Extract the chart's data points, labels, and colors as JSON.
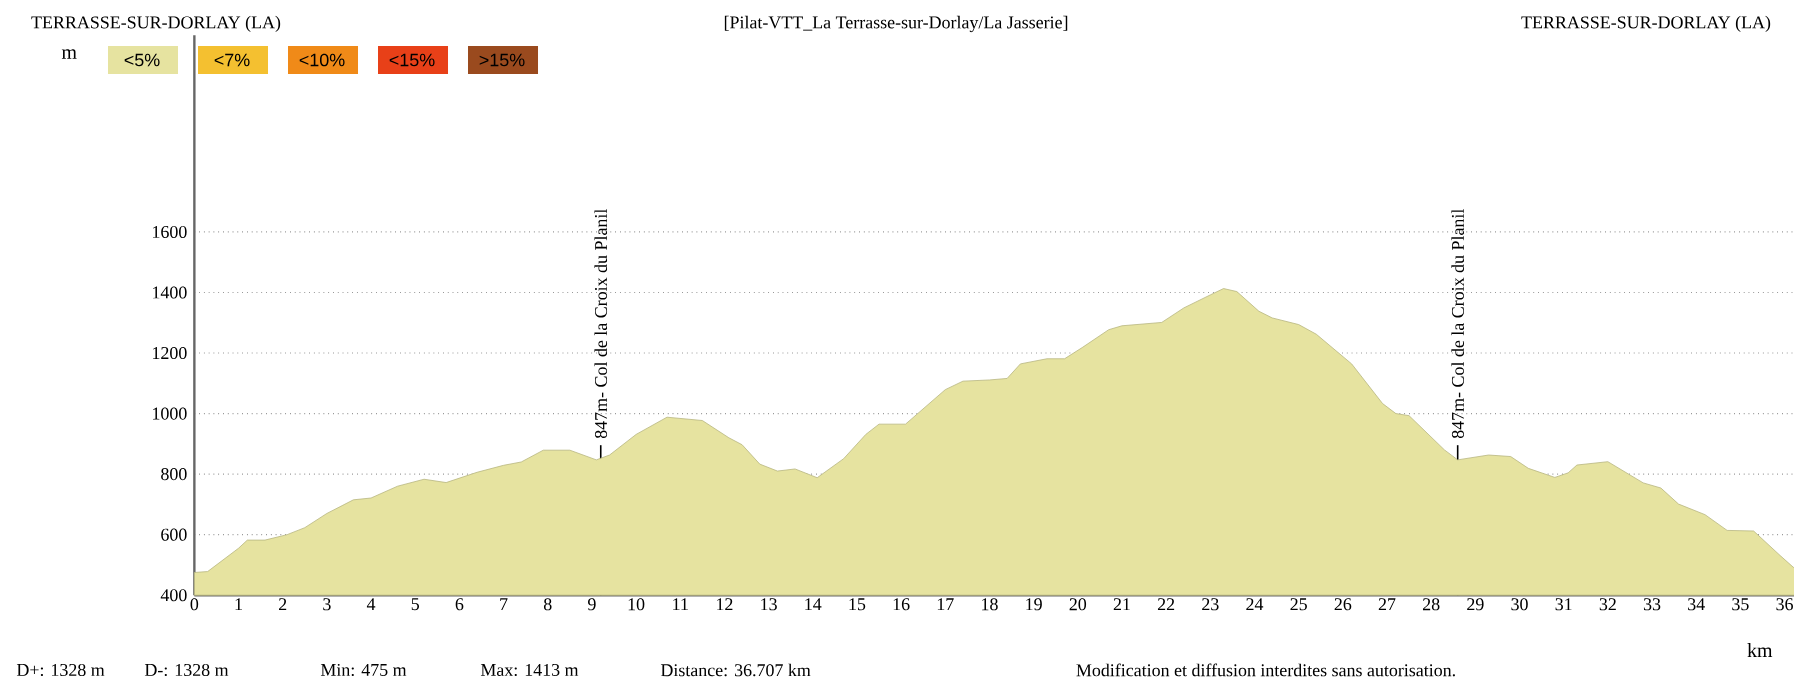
{
  "chart_data": {
    "type": "area",
    "title": "[Pilat-VTT_La Terrasse-sur-Dorlay/La Jasserie]",
    "xlabel": "km",
    "ylabel": "m",
    "annotations": [
      "TERRASSE-SUR-DORLAY (LA)",
      "TERRASSE-SUR-DORLAY (LA)",
      "<5%",
      "<7%",
      "<10%",
      "<15%",
      ">15%",
      "D+: 1328 m",
      "D-: 1328 m",
      "Min: 475 m",
      "Max: 1413 m",
      "Distance: 36.707 km",
      "Modification et diffusion interdites sans autorisation."
    ],
    "series": [
      {
        "color": "#e6e3a0",
        "x": [
          0,
          0.3,
          1.0,
          1.2,
          1.6,
          2.1,
          2.5,
          3.0,
          3.6,
          4.0,
          4.6,
          5.2,
          5.7,
          6.4,
          7.0,
          7.4,
          7.9,
          8.5,
          8.8,
          9.1,
          9.4,
          10.0,
          10.7,
          11.5,
          12.1,
          12.4,
          12.8,
          13.2,
          13.6,
          14.1,
          14.7,
          15.2,
          15.5,
          16.1,
          17.0,
          17.4,
          18.0,
          18.4,
          18.7,
          19.3,
          19.7,
          20.1,
          20.7,
          21.0,
          21.9,
          22.4,
          23.0,
          23.3,
          23.6,
          24.1,
          24.4,
          25.0,
          25.4,
          26.2,
          26.9,
          27.2,
          27.5,
          28.3,
          28.6,
          29.3,
          29.8,
          30.2,
          30.8,
          31.1,
          31.3,
          32.0,
          32.8,
          33.2,
          33.6,
          34.2,
          34.7,
          35.3,
          35.9,
          36.2,
          36.7
        ],
        "values": [
          475,
          478,
          555,
          582,
          582,
          600,
          623,
          670,
          715,
          721,
          760,
          783,
          772,
          806,
          829,
          840,
          879,
          879,
          863,
          847,
          863,
          931,
          988,
          977,
          920,
          897,
          833,
          810,
          817,
          788,
          851,
          931,
          965,
          965,
          1079,
          1107,
          1111,
          1116,
          1164,
          1181,
          1181,
          1218,
          1277,
          1290,
          1301,
          1349,
          1392,
          1413,
          1403,
          1338,
          1316,
          1294,
          1262,
          1164,
          1033,
          1000,
          993,
          880,
          847,
          863,
          858,
          819,
          789,
          804,
          830,
          841,
          771,
          754,
          701,
          666,
          614,
          612,
          531,
          492,
          488
        ]
      }
    ],
    "xlim": [
      0,
      37.4
    ],
    "ylim": [
      400,
      2250
    ],
    "xticks": [
      0,
      1,
      2,
      3,
      4,
      5,
      6,
      7,
      8,
      9,
      10,
      11,
      12,
      13,
      14,
      15,
      16,
      17,
      18,
      19,
      20,
      21,
      22,
      23,
      24,
      25,
      26,
      27,
      28,
      29,
      30,
      31,
      32,
      33,
      34,
      35,
      36
    ],
    "yticks": [
      400,
      600,
      800,
      1000,
      1200,
      1400,
      1600
    ],
    "grid": "y",
    "ref_lines": [
      {
        "axis": "x",
        "value": 9.2,
        "label": "847m- Col de la Croix du Planil"
      },
      {
        "axis": "x",
        "value": 28.6,
        "label": "847m- Col de la Croix du Planil"
      }
    ]
  }
}
